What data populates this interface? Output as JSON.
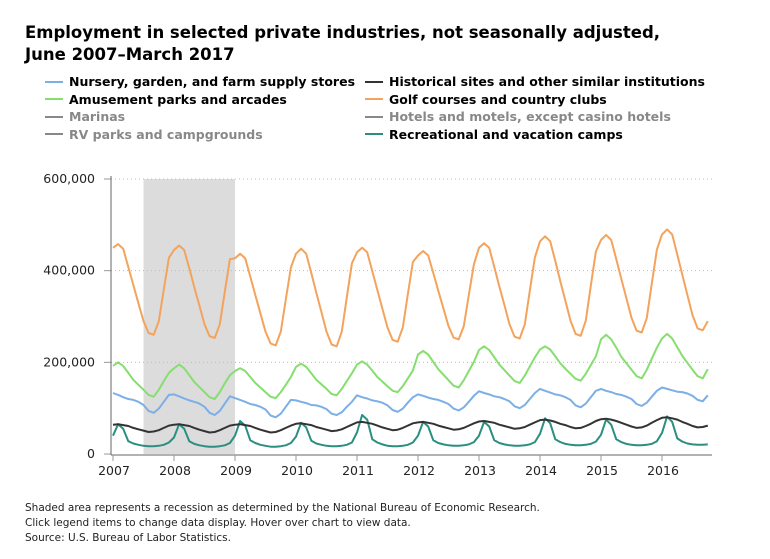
{
  "chart_data": {
    "type": "line",
    "title": "Employment in selected private industries, not seasonally adjusted, June 2007–March 2017",
    "xlabel": "",
    "ylabel": "",
    "ylim": [
      0,
      600000
    ],
    "yticks": [
      "0",
      "200,000",
      "400,000",
      "600,000"
    ],
    "xticks": [
      "2007",
      "2008",
      "2009",
      "2010",
      "2011",
      "2012",
      "2013",
      "2014",
      "2015",
      "2016"
    ],
    "grid": "horizontal dotted",
    "legend_position": "top",
    "shaded_region": {
      "from": 2007.5,
      "to": 2009.0,
      "color": "#dcdcdc"
    },
    "series_note": "monthly values by year, Jan–Dec",
    "series": [
      {
        "name": "Nursery, garden, and farm supply stores",
        "color": "#7cafe6",
        "visible": true,
        "values": {
          "2007": [
            133000,
            129000,
            124000,
            120000,
            118000,
            114000,
            107000,
            94000,
            90000,
            99000,
            114000,
            129000
          ],
          "2008": [
            130000,
            126000,
            121000,
            117000,
            114000,
            110000,
            103000,
            90000,
            85000,
            94000,
            110000,
            126000
          ],
          "2009": [
            122000,
            118000,
            114000,
            109000,
            107000,
            103000,
            97000,
            84000,
            80000,
            88000,
            103000,
            118000
          ],
          "2010": [
            117000,
            114000,
            111000,
            107000,
            106000,
            103000,
            98000,
            88000,
            85000,
            91000,
            103000,
            114000
          ],
          "2011": [
            128000,
            124000,
            121000,
            117000,
            115000,
            112000,
            106000,
            96000,
            92000,
            99000,
            112000,
            124000
          ],
          "2012": [
            130000,
            127000,
            123000,
            120000,
            118000,
            114000,
            109000,
            99000,
            95000,
            102000,
            114000,
            127000
          ],
          "2013": [
            137000,
            133000,
            130000,
            126000,
            124000,
            120000,
            115000,
            104000,
            100000,
            107000,
            120000,
            133000
          ],
          "2014": [
            142000,
            138000,
            134000,
            130000,
            128000,
            124000,
            118000,
            106000,
            102000,
            110000,
            124000,
            138000
          ],
          "2015": [
            142000,
            138000,
            135000,
            131000,
            129000,
            125000,
            120000,
            109000,
            105000,
            112000,
            125000,
            138000
          ],
          "2016": [
            145000,
            142000,
            139000,
            136000,
            135000,
            132000,
            127000,
            118000,
            115000,
            128000
          ]
        }
      },
      {
        "name": "Historical sites and other similar institutions",
        "color": "#333333",
        "visible": true,
        "values": {
          "2007": [
            64000,
            65000,
            63000,
            61000,
            57000,
            54000,
            51000,
            48000,
            49000,
            52000,
            57000,
            62000
          ],
          "2008": [
            64000,
            65000,
            63000,
            61000,
            57000,
            53000,
            50000,
            47000,
            48000,
            52000,
            57000,
            62000
          ],
          "2009": [
            64000,
            65000,
            63000,
            61000,
            57000,
            53000,
            50000,
            47000,
            48000,
            52000,
            57000,
            62000
          ],
          "2010": [
            66000,
            67000,
            65000,
            63000,
            59000,
            56000,
            53000,
            50000,
            51000,
            54000,
            59000,
            64000
          ],
          "2011": [
            69000,
            70000,
            68000,
            66000,
            62000,
            58000,
            55000,
            52000,
            53000,
            57000,
            62000,
            67000
          ],
          "2012": [
            69000,
            70000,
            68000,
            66000,
            62000,
            59000,
            56000,
            53000,
            54000,
            57000,
            62000,
            67000
          ],
          "2013": [
            71000,
            72000,
            70000,
            68000,
            64000,
            61000,
            58000,
            55000,
            56000,
            59000,
            64000,
            69000
          ],
          "2014": [
            74000,
            75000,
            73000,
            70000,
            66000,
            63000,
            59000,
            56000,
            57000,
            61000,
            66000,
            72000
          ],
          "2015": [
            76000,
            77000,
            75000,
            72000,
            68000,
            64000,
            60000,
            57000,
            58000,
            62000,
            68000,
            74000
          ],
          "2016": [
            79000,
            80000,
            78000,
            75000,
            70000,
            66000,
            61000,
            58000,
            59000,
            62000
          ]
        }
      },
      {
        "name": "Amusement parks and arcades",
        "color": "#86de6f",
        "visible": true,
        "values": {
          "2007": [
            192000,
            200000,
            192000,
            177000,
            162000,
            151000,
            140000,
            129000,
            125000,
            140000,
            159000,
            177000
          ],
          "2008": [
            187000,
            195000,
            187000,
            172000,
            157000,
            146000,
            135000,
            124000,
            120000,
            135000,
            154000,
            172000
          ],
          "2009": [
            181000,
            187000,
            181000,
            168000,
            155000,
            145000,
            135000,
            125000,
            122000,
            135000,
            151000,
            168000
          ],
          "2010": [
            190000,
            197000,
            190000,
            176000,
            162000,
            152000,
            142000,
            131000,
            128000,
            142000,
            159000,
            176000
          ],
          "2011": [
            195000,
            202000,
            195000,
            182000,
            168000,
            158000,
            148000,
            138000,
            135000,
            148000,
            165000,
            182000
          ],
          "2012": [
            217000,
            225000,
            217000,
            201000,
            185000,
            173000,
            161000,
            149000,
            145000,
            161000,
            181000,
            201000
          ],
          "2013": [
            227000,
            235000,
            227000,
            211000,
            195000,
            183000,
            171000,
            159000,
            155000,
            171000,
            191000,
            211000
          ],
          "2014": [
            228000,
            235000,
            228000,
            213000,
            198000,
            186000,
            175000,
            164000,
            160000,
            175000,
            194000,
            213000
          ],
          "2015": [
            250000,
            260000,
            250000,
            232000,
            212000,
            198000,
            184000,
            170000,
            165000,
            184000,
            208000,
            232000
          ],
          "2016": [
            252000,
            262000,
            252000,
            233000,
            214000,
            199000,
            184000,
            170000,
            165000,
            185000
          ]
        }
      },
      {
        "name": "Golf courses and country clubs",
        "color": "#f4a35c",
        "visible": true,
        "values": {
          "2007": [
            450000,
            458000,
            448000,
            408000,
            369000,
            329000,
            290000,
            264000,
            260000,
            290000,
            359000,
            428000
          ],
          "2008": [
            445000,
            455000,
            445000,
            405000,
            364000,
            324000,
            283000,
            257000,
            253000,
            283000,
            354000,
            425000
          ],
          "2009": [
            427000,
            437000,
            427000,
            387000,
            347000,
            307000,
            267000,
            241000,
            237000,
            267000,
            337000,
            407000
          ],
          "2010": [
            437000,
            448000,
            437000,
            395000,
            352000,
            310000,
            267000,
            239000,
            235000,
            267000,
            342000,
            416000
          ],
          "2011": [
            440000,
            450000,
            440000,
            399000,
            358000,
            317000,
            276000,
            249000,
            245000,
            276000,
            348000,
            419000
          ],
          "2012": [
            433000,
            443000,
            433000,
            395000,
            356000,
            318000,
            279000,
            254000,
            250000,
            279000,
            347000,
            414000
          ],
          "2013": [
            450000,
            460000,
            450000,
            408000,
            366000,
            325000,
            283000,
            256000,
            252000,
            283000,
            356000,
            429000
          ],
          "2014": [
            464000,
            475000,
            464000,
            421000,
            377000,
            334000,
            291000,
            262000,
            258000,
            291000,
            367000,
            442000
          ],
          "2015": [
            467000,
            478000,
            467000,
            425000,
            382000,
            340000,
            297000,
            269000,
            265000,
            297000,
            372000,
            446000
          ],
          "2016": [
            479000,
            490000,
            479000,
            435000,
            391000,
            347000,
            303000,
            274000,
            270000,
            290000
          ]
        }
      },
      {
        "name": "Marinas",
        "color": "#888888",
        "visible": false,
        "values": {}
      },
      {
        "name": "Hotels and motels, except casino hotels",
        "color": "#888888",
        "visible": false,
        "values": {}
      },
      {
        "name": "RV parks and campgrounds",
        "color": "#888888",
        "visible": false,
        "values": {}
      },
      {
        "name": "Recreational and vacation camps",
        "color": "#2a8f80",
        "visible": true,
        "values": {
          "2007": [
            40000,
            65000,
            55000,
            28000,
            23000,
            20000,
            18000,
            17000,
            17000,
            18000,
            20000,
            25000
          ],
          "2008": [
            36000,
            65000,
            55000,
            28000,
            22000,
            19000,
            17000,
            16000,
            16000,
            17000,
            19000,
            24000
          ],
          "2009": [
            40000,
            72000,
            62000,
            30000,
            24000,
            20000,
            18000,
            16000,
            16000,
            17000,
            19000,
            24000
          ],
          "2010": [
            38000,
            68000,
            58000,
            29000,
            23000,
            20000,
            18000,
            17000,
            17000,
            18000,
            20000,
            25000
          ],
          "2011": [
            47000,
            85000,
            75000,
            32000,
            25000,
            21000,
            18000,
            17000,
            17000,
            18000,
            20000,
            25000
          ],
          "2012": [
            40000,
            70000,
            60000,
            30000,
            24000,
            21000,
            19000,
            18000,
            18000,
            19000,
            21000,
            26000
          ],
          "2013": [
            40000,
            70000,
            60000,
            30000,
            24000,
            21000,
            19000,
            18000,
            18000,
            19000,
            21000,
            26000
          ],
          "2014": [
            44000,
            78000,
            67000,
            32000,
            26000,
            22000,
            20000,
            19000,
            19000,
            20000,
            22000,
            27000
          ],
          "2015": [
            42000,
            75000,
            64000,
            32000,
            26000,
            22000,
            20000,
            19000,
            19000,
            20000,
            22000,
            28000
          ],
          "2016": [
            46000,
            82000,
            70000,
            34000,
            27000,
            23000,
            21000,
            20000,
            20000,
            21000
          ]
        }
      }
    ]
  },
  "legend": [
    {
      "label": "Nursery, garden, and farm supply stores",
      "color": "#7cafe6",
      "active": true
    },
    {
      "label": "Historical sites and other similar institutions",
      "color": "#333333",
      "active": true
    },
    {
      "label": "Amusement parks and arcades",
      "color": "#86de6f",
      "active": true
    },
    {
      "label": "Golf courses and country clubs",
      "color": "#f4a35c",
      "active": true
    },
    {
      "label": "Marinas",
      "color": "#888888",
      "active": false
    },
    {
      "label": "Hotels and motels, except casino hotels",
      "color": "#888888",
      "active": false
    },
    {
      "label": "RV parks and campgrounds",
      "color": "#888888",
      "active": false
    },
    {
      "label": "Recreational and vacation camps",
      "color": "#2a8f80",
      "active": true
    }
  ],
  "footer": {
    "line1": "Shaded area represents a recession as determined by the National Bureau of Economic Research.",
    "line2": "Click legend items to change data display. Hover over chart to view data.",
    "line3": "Source: U.S. Bureau of Labor Statistics."
  }
}
